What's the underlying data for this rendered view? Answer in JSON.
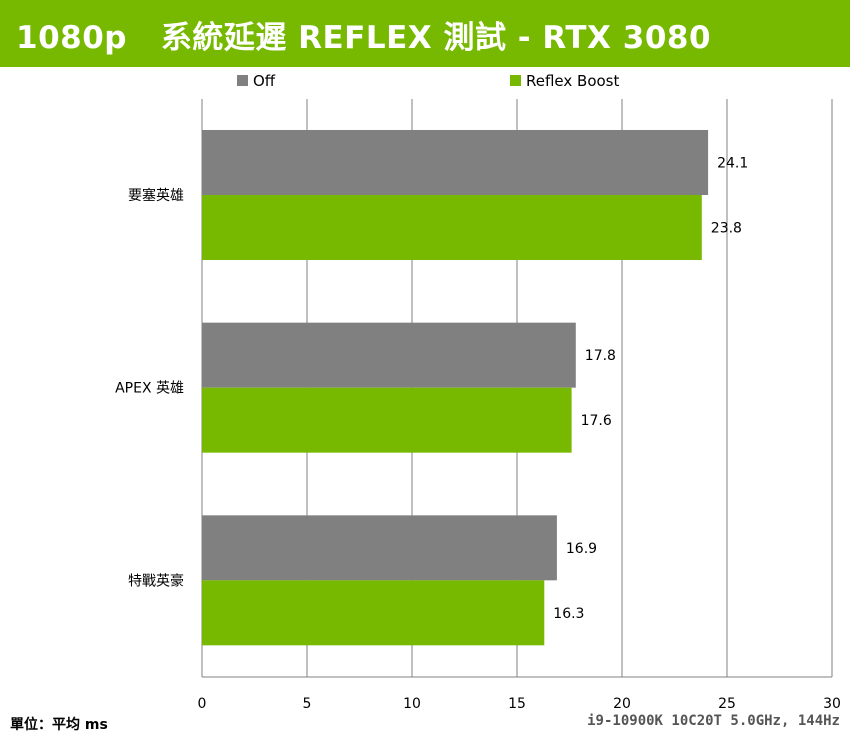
{
  "header": {
    "title": "1080p   系統延遲 REFLEX 測試 - RTX 3080"
  },
  "footer": {
    "unit": "單位：平均 ms",
    "system": "i9-10900K 10C20T 5.0GHz, 144Hz"
  },
  "colors": {
    "header_bg": "#76b900",
    "off": "#808080",
    "reflex_boost": "#76b900",
    "grid": "#808080"
  },
  "chart_data": {
    "type": "bar",
    "orientation": "horizontal",
    "title": "1080p   系統延遲 REFLEX 測試 - RTX 3080",
    "xlabel": "",
    "ylabel": "",
    "unit": "單位：平均 ms",
    "xlim": [
      0,
      30
    ],
    "xticks": [
      "0",
      "5",
      "10",
      "15",
      "20",
      "25",
      "30"
    ],
    "grid": true,
    "legend_position": "top",
    "categories": [
      "要塞英雄",
      "APEX 英雄",
      "特戰英豪"
    ],
    "series": [
      {
        "name": "Off",
        "color": "#808080",
        "values": [
          24.1,
          17.8,
          16.9
        ]
      },
      {
        "name": "Reflex Boost",
        "color": "#76b900",
        "values": [
          23.8,
          17.6,
          16.3
        ]
      }
    ]
  }
}
